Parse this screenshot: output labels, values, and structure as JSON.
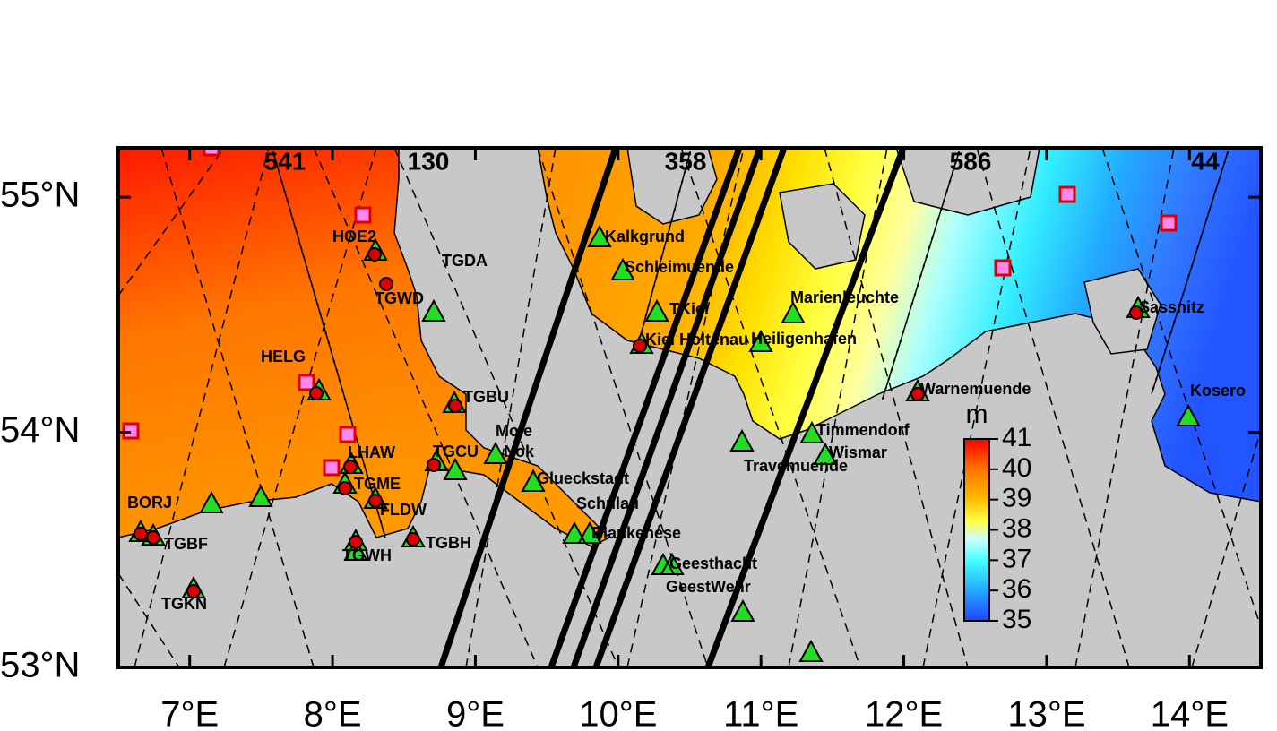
{
  "map": {
    "xlim": [
      6.5,
      14.5
    ],
    "ylim": [
      53,
      55.21
    ],
    "xticks": [
      {
        "value": 7,
        "label": "7°E"
      },
      {
        "value": 8,
        "label": "8°E"
      },
      {
        "value": 9,
        "label": "9°E"
      },
      {
        "value": 10,
        "label": "10°E"
      },
      {
        "value": 11,
        "label": "11°E"
      },
      {
        "value": 12,
        "label": "12°E"
      },
      {
        "value": 13,
        "label": "13°E"
      },
      {
        "value": 14,
        "label": "14°E"
      }
    ],
    "yticks": [
      {
        "value": 53,
        "label": "53°N"
      },
      {
        "value": 54,
        "label": "54°N"
      },
      {
        "value": 55,
        "label": "55°N"
      }
    ],
    "track_labels": [
      "541",
      "130",
      "358",
      "586",
      "44"
    ],
    "station_labels": [
      "HOE2",
      "TGDA",
      "TGWD",
      "HELG",
      "TGBU",
      "Mole",
      "TGCU",
      "Nok",
      "LHAW",
      "TGME",
      "BORJ",
      "FLDW",
      "TGBF",
      "TGWH",
      "TGBH",
      "TGKN",
      "Kalkgrund",
      "Schleimuende",
      "TKiel",
      "Kiel Holtenau",
      "Marienleuchte",
      "Heiligenhafen",
      "Warnemuende",
      "Sassnitz",
      "Kosero",
      "Timmendorf",
      "Wismar",
      "Travemuende",
      "Glueckstadt",
      "Schulau",
      "Blankenese",
      "Geesthacht",
      "GeestWehr"
    ],
    "colorbar": {
      "title": "m",
      "range": [
        35,
        41
      ],
      "ticks": [
        35,
        36,
        37,
        38,
        39,
        40,
        41
      ]
    }
  }
}
